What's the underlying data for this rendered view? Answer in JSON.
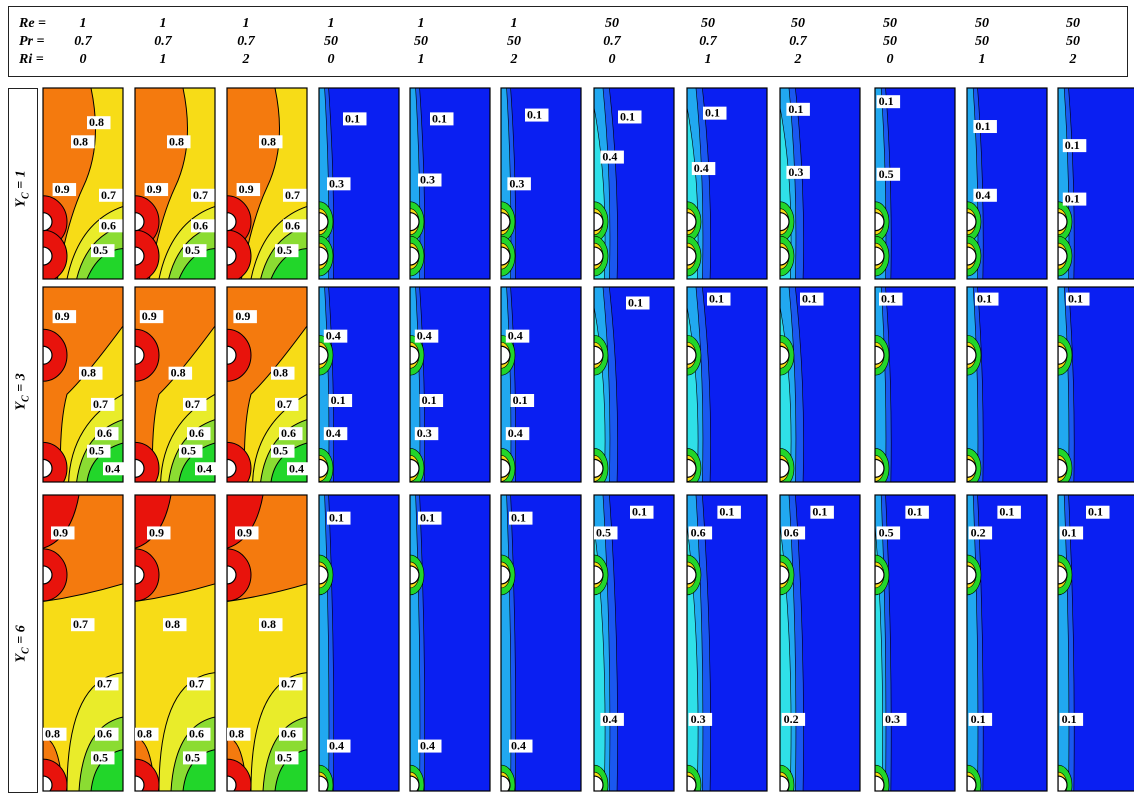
{
  "header": {
    "row_labels": [
      "Re =",
      "Pr =",
      "Ri ="
    ],
    "columns": [
      {
        "re": "1",
        "pr": "0.7",
        "ri": "0"
      },
      {
        "re": "1",
        "pr": "0.7",
        "ri": "1"
      },
      {
        "re": "1",
        "pr": "0.7",
        "ri": "2"
      },
      {
        "re": "1",
        "pr": "50",
        "ri": "0"
      },
      {
        "re": "1",
        "pr": "50",
        "ri": "1"
      },
      {
        "re": "1",
        "pr": "50",
        "ri": "2"
      },
      {
        "re": "50",
        "pr": "0.7",
        "ri": "0"
      },
      {
        "re": "50",
        "pr": "0.7",
        "ri": "1"
      },
      {
        "re": "50",
        "pr": "0.7",
        "ri": "2"
      },
      {
        "re": "50",
        "pr": "50",
        "ri": "0"
      },
      {
        "re": "50",
        "pr": "50",
        "ri": "1"
      },
      {
        "re": "50",
        "pr": "50",
        "ri": "2"
      }
    ]
  },
  "rows": [
    {
      "label": "Y_C = 1",
      "name": "Y",
      "sub": "C",
      "value": "= 1"
    },
    {
      "label": "Y_C = 3",
      "name": "Y",
      "sub": "C",
      "value": "= 3"
    },
    {
      "label": "Y_C = 6",
      "name": "Y",
      "sub": "C",
      "value": "= 6"
    }
  ],
  "colors": {
    "red": "#e8130c",
    "orange": "#f47a0e",
    "yellow": "#f7dc17",
    "light_yellow": "#e9ec2a",
    "green": "#8bdc32",
    "bright_green": "#22d62a",
    "cyan": "#2fe0e8",
    "light_blue": "#21a8f0",
    "blue": "#0a1ff2",
    "blue_mid": "#1a58f0"
  },
  "panels": [
    [
      "0.8",
      "0.8",
      "0.9",
      "0.7",
      "0.6",
      "0.5"
    ],
    [
      "0.8",
      "0.9",
      "0.7",
      "0.6",
      "0.5"
    ],
    [
      "0.8",
      "0.9",
      "0.7",
      "0.6",
      "0.5"
    ],
    [
      "0.1",
      "0.3"
    ],
    [
      "0.1",
      "0.3"
    ],
    [
      "0.1",
      "0.3"
    ],
    [
      "0.1",
      "0.4"
    ],
    [
      "0.1",
      "0.4"
    ],
    [
      "0.1",
      "0.3"
    ],
    [
      "0.1",
      "0.5"
    ],
    [
      "0.1",
      "0.4"
    ],
    [
      "0.1",
      "0.1"
    ],
    [
      "0.9",
      "0.8",
      "0.7",
      "0.6",
      "0.5",
      "0.4"
    ],
    [
      "0.9",
      "0.8",
      "0.7",
      "0.6",
      "0.5",
      "0.4"
    ],
    [
      "0.9",
      "0.8",
      "0.7",
      "0.6",
      "0.5",
      "0.4"
    ],
    [
      "0.4",
      "0.1",
      "0.4"
    ],
    [
      "0.4",
      "0.1",
      "0.3"
    ],
    [
      "0.4",
      "0.1",
      "0.4"
    ],
    [
      "0.1"
    ],
    [
      "0.1"
    ],
    [
      "0.1"
    ],
    [
      "0.1"
    ],
    [
      "0.1"
    ],
    [
      "0.1"
    ],
    [
      "0.9",
      "0.7",
      "0.7",
      "0.8",
      "0.6",
      "0.5"
    ],
    [
      "0.9",
      "0.8",
      "0.7",
      "0.8",
      "0.6",
      "0.5"
    ],
    [
      "0.9",
      "0.8",
      "0.7",
      "0.8",
      "0.6",
      "0.5"
    ],
    [
      "0.1",
      "0.4"
    ],
    [
      "0.1",
      "0.4"
    ],
    [
      "0.1",
      "0.4"
    ],
    [
      "0.1",
      "0.5",
      "0.4"
    ],
    [
      "0.1",
      "0.6",
      "0.3"
    ],
    [
      "0.1",
      "0.6",
      "0.2"
    ],
    [
      "0.1",
      "0.5",
      "0.3"
    ],
    [
      "0.1",
      "0.2",
      "0.1"
    ],
    [
      "0.1",
      "0.1",
      "0.1"
    ]
  ]
}
